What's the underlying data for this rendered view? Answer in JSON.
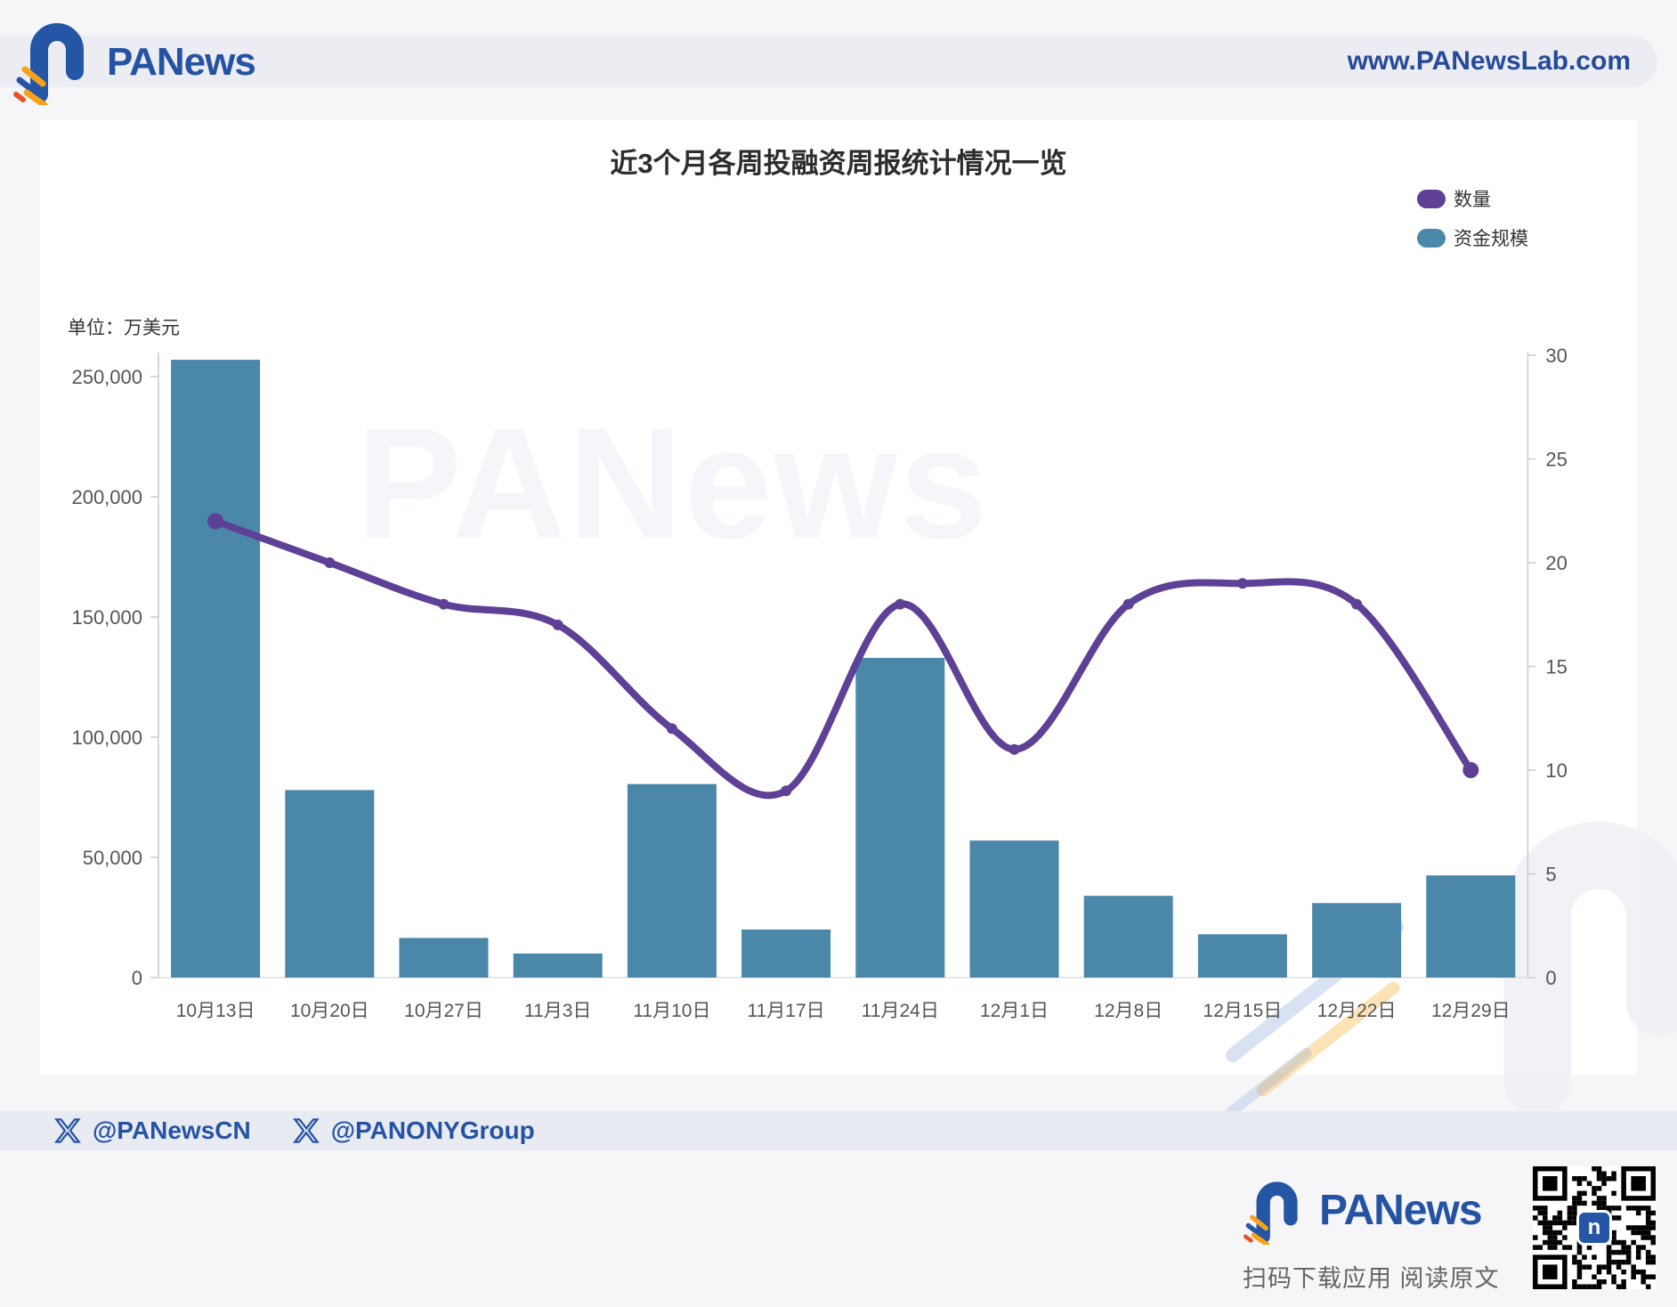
{
  "header": {
    "logo_text": "PANews",
    "url": "www.PANewsLab.com"
  },
  "chart": {
    "title": "近3个月各周投融资周报统计情况一览",
    "unit_label": "单位：万美元",
    "legend": [
      {
        "label": "数量",
        "color": "#5e4197"
      },
      {
        "label": "资金规模",
        "color": "#4a87a9"
      }
    ]
  },
  "watermark": {
    "text": "PANews"
  },
  "chart_data": {
    "type": "bar",
    "title": "近3个月各周投融资周报统计情况一览",
    "categories": [
      "10月13日",
      "10月20日",
      "10月27日",
      "11月3日",
      "11月10日",
      "11月17日",
      "11月24日",
      "12月1日",
      "12月8日",
      "12月15日",
      "12月22日",
      "12月29日"
    ],
    "series": [
      {
        "name": "资金规模",
        "type": "bar",
        "axis": "left",
        "color": "#4a87a9",
        "values": [
          257000,
          78000,
          16500,
          10000,
          80500,
          20000,
          133000,
          57000,
          34000,
          18000,
          31000,
          42500
        ]
      },
      {
        "name": "数量",
        "type": "line",
        "axis": "right",
        "color": "#5e4197",
        "smooth": true,
        "values": [
          22,
          20,
          18,
          17,
          12,
          9,
          18,
          11,
          18,
          19,
          18,
          10
        ]
      }
    ],
    "left_axis": {
      "unit": "万美元",
      "min": 0,
      "max": 250000,
      "tick_labels": [
        "0",
        "50,000",
        "100,000",
        "150,000",
        "200,000",
        "250,000"
      ]
    },
    "right_axis": {
      "min": 0,
      "max": 30,
      "tick_labels": [
        "0",
        "5",
        "10",
        "15",
        "20",
        "25",
        "30"
      ]
    },
    "grid": false,
    "legend_position": "top-right"
  },
  "footer": {
    "handles": [
      {
        "platform": "X",
        "label": "@PANewsCN"
      },
      {
        "platform": "X",
        "label": "@PANONYGroup"
      }
    ]
  },
  "bottom": {
    "logo_text": "PANews",
    "caption": "扫码下载应用  阅读原文"
  }
}
